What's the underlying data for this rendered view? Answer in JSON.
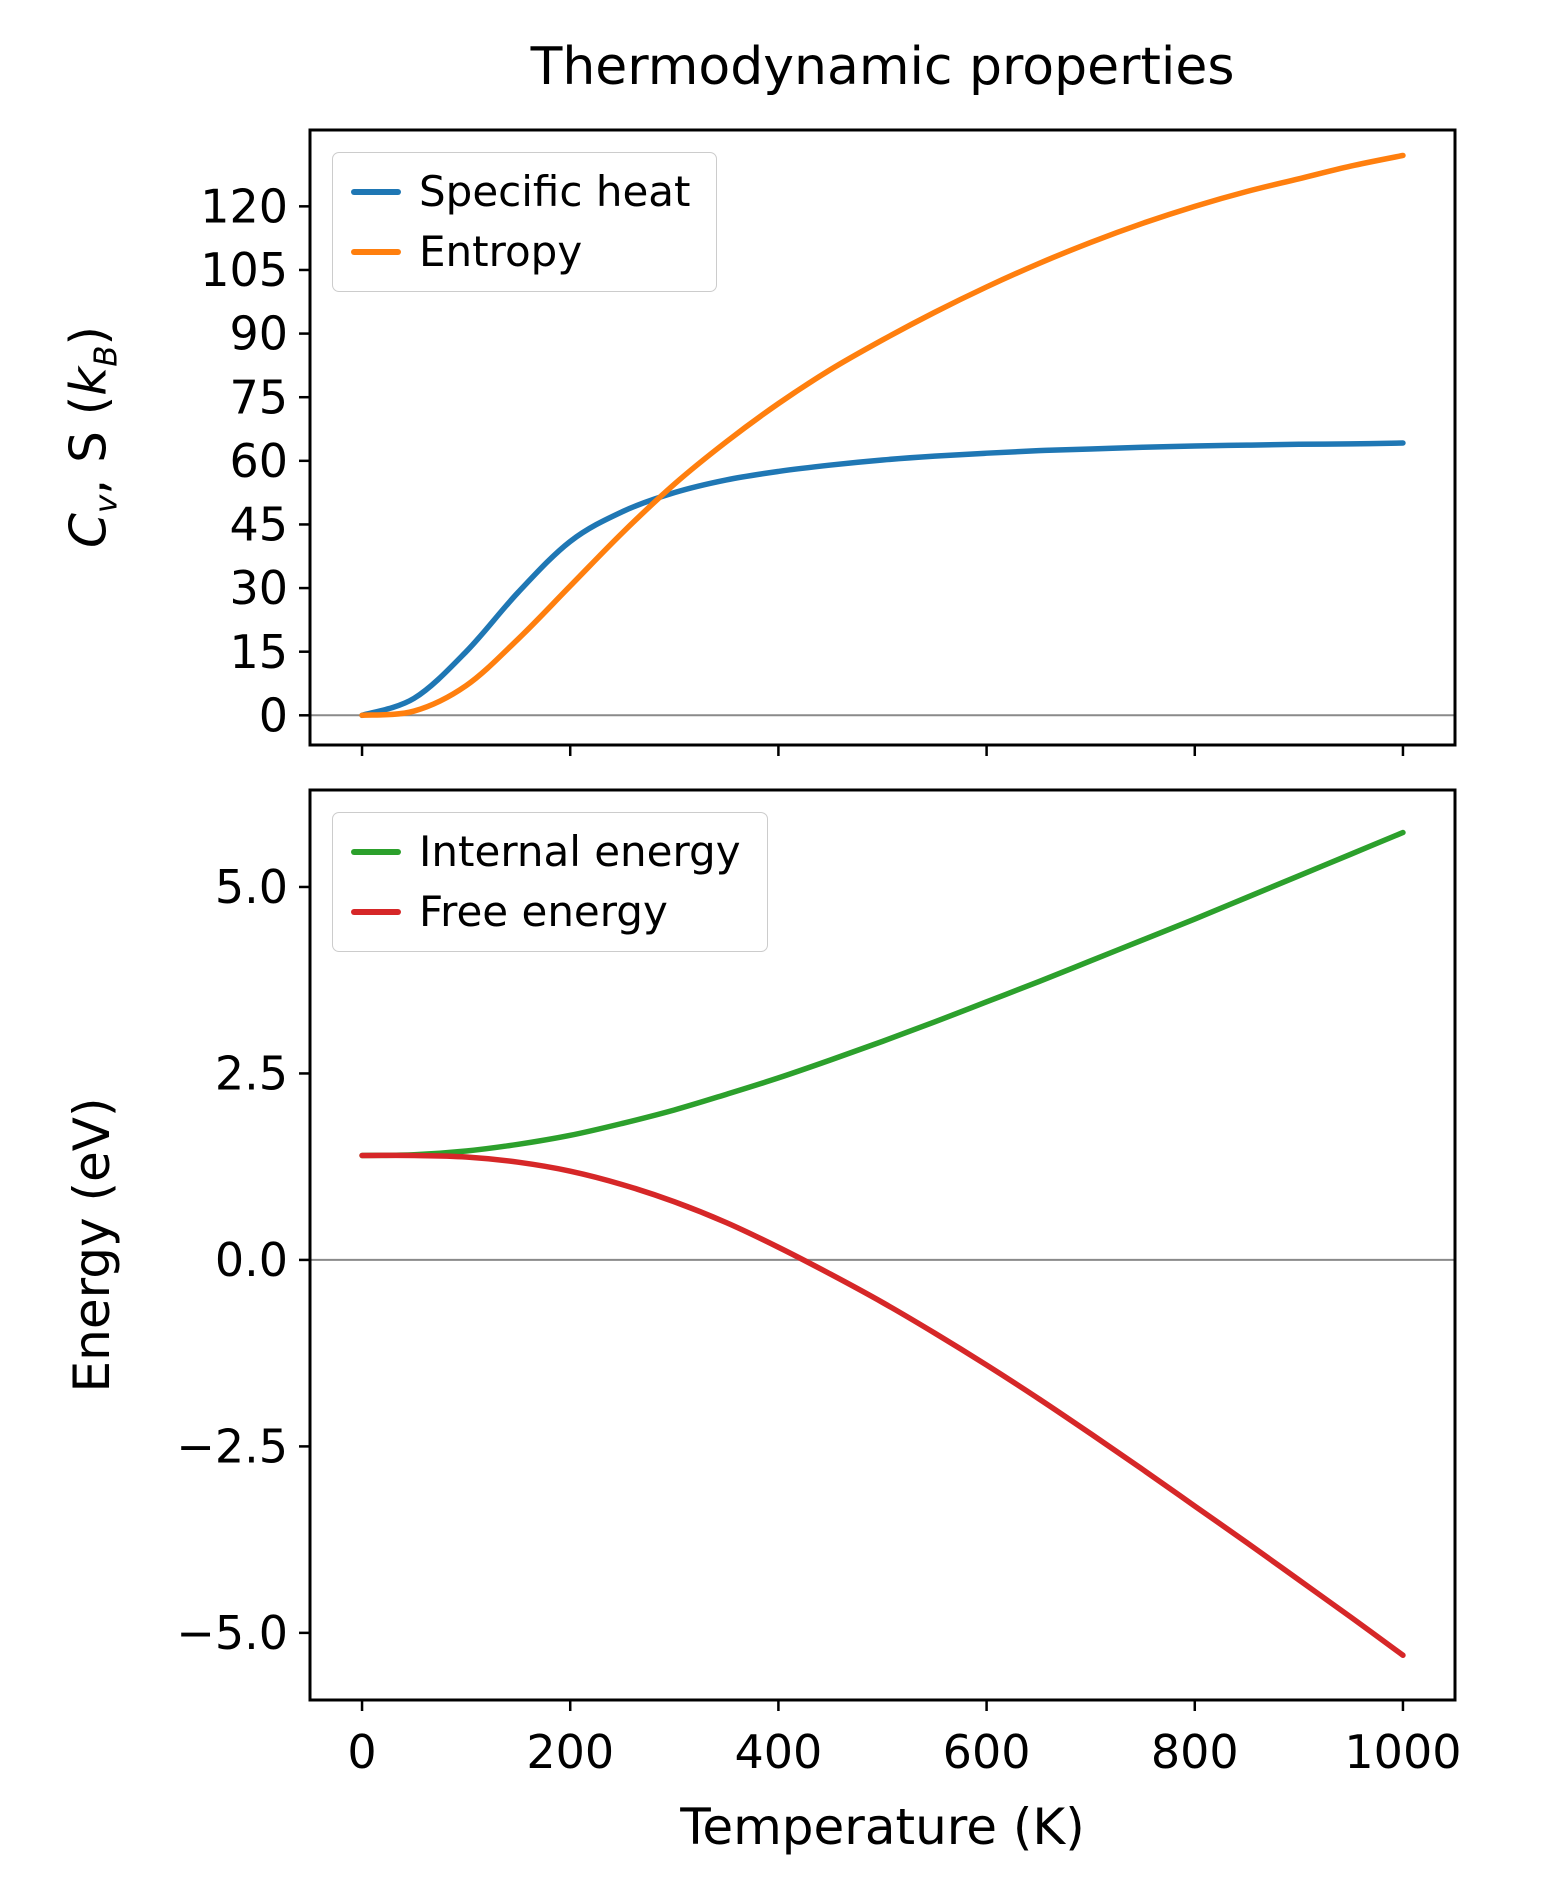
{
  "title": "Thermodynamic properties",
  "chart_data": [
    {
      "type": "line",
      "title": "Thermodynamic properties",
      "ylabel_text": "Cv, S (kB)",
      "ylabel_parts": {
        "c": "C",
        "c_sub": "v",
        "mid": ", S (",
        "k": "k",
        "k_sub": "B",
        "end": ")"
      },
      "xlabel": "",
      "xlim": [
        -50,
        1050
      ],
      "ylim": [
        -7,
        138
      ],
      "grid": false,
      "zero_line": true,
      "legend_position": "upper left",
      "ytick_values": [
        0,
        15,
        30,
        45,
        60,
        75,
        90,
        105,
        120
      ],
      "ytick_labels": [
        "0",
        "15",
        "30",
        "45",
        "60",
        "75",
        "90",
        "105",
        "120"
      ],
      "xtick_values": [
        0,
        200,
        400,
        600,
        800,
        1000
      ],
      "xtick_labels": [],
      "x": [
        0,
        50,
        100,
        150,
        200,
        250,
        300,
        350,
        400,
        450,
        500,
        550,
        600,
        650,
        700,
        750,
        800,
        850,
        900,
        950,
        1000
      ],
      "series": [
        {
          "name": "Specific heat",
          "color": "#1f77b4",
          "values": [
            0,
            4,
            15,
            29,
            41,
            48,
            52.5,
            55.5,
            57.5,
            59,
            60.2,
            61.1,
            61.8,
            62.4,
            62.8,
            63.2,
            63.5,
            63.7,
            63.9,
            64.0,
            64.2
          ]
        },
        {
          "name": "Entropy",
          "color": "#ff7f0e",
          "values": [
            0,
            1,
            7,
            18,
            30.5,
            43,
            54.5,
            64.5,
            73.5,
            81.5,
            88.5,
            95,
            101,
            106.5,
            111.5,
            116,
            120,
            123.5,
            126.5,
            129.5,
            132
          ]
        }
      ]
    },
    {
      "type": "line",
      "ylabel_text": "Energy (eV)",
      "xlabel": "Temperature (K)",
      "xlim": [
        -50,
        1050
      ],
      "ylim": [
        -5.9,
        6.3
      ],
      "grid": false,
      "zero_line": true,
      "legend_position": "upper left",
      "ytick_values": [
        -5.0,
        -2.5,
        0.0,
        2.5,
        5.0
      ],
      "ytick_labels": [
        "−5.0",
        "−2.5",
        "0.0",
        "2.5",
        "5.0"
      ],
      "xtick_values": [
        0,
        200,
        400,
        600,
        800,
        1000
      ],
      "xtick_labels": [
        "0",
        "200",
        "400",
        "600",
        "800",
        "1000"
      ],
      "x": [
        0,
        50,
        100,
        150,
        200,
        250,
        300,
        350,
        400,
        450,
        500,
        550,
        600,
        650,
        700,
        750,
        800,
        850,
        900,
        950,
        1000
      ],
      "series": [
        {
          "name": "Internal energy",
          "color": "#2ca02c",
          "values": [
            1.4,
            1.41,
            1.46,
            1.55,
            1.67,
            1.83,
            2.01,
            2.22,
            2.44,
            2.68,
            2.93,
            3.19,
            3.46,
            3.73,
            4.01,
            4.29,
            4.57,
            4.86,
            5.15,
            5.44,
            5.73
          ]
        },
        {
          "name": "Free energy",
          "color": "#d62728",
          "values": [
            1.4,
            1.4,
            1.38,
            1.31,
            1.19,
            1.01,
            0.78,
            0.5,
            0.17,
            -0.19,
            -0.57,
            -0.98,
            -1.41,
            -1.86,
            -2.33,
            -2.81,
            -3.3,
            -3.79,
            -4.29,
            -4.79,
            -5.3
          ]
        }
      ]
    }
  ]
}
